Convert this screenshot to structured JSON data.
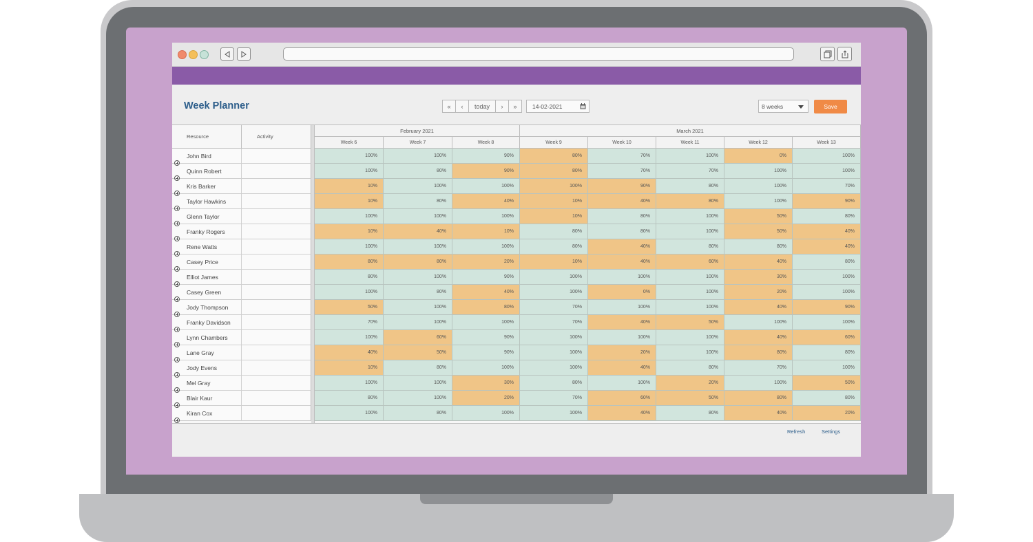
{
  "page": {
    "title": "Week Planner"
  },
  "toolbar": {
    "nav_first": "«",
    "nav_prev": "‹",
    "today": "today",
    "nav_next": "›",
    "nav_last": "»",
    "date": "14-02-2021",
    "range_select": "8 weeks",
    "save": "Save"
  },
  "grid": {
    "col_resource": "Resource",
    "col_activity": "Activity",
    "months": [
      "February 2021",
      "March 2021"
    ],
    "weeks": [
      "Week 6",
      "Week 7",
      "Week 8",
      "Week 9",
      "Week 10",
      "Week 11",
      "Week 12",
      "Week 13"
    ],
    "rows": [
      {
        "name": "John Bird",
        "values": [
          "100%",
          "100%",
          "90%",
          "80%",
          "70%",
          "100%",
          "0%",
          "100%"
        ]
      },
      {
        "name": "Quinn Robert",
        "values": [
          "100%",
          "80%",
          "90%",
          "80%",
          "70%",
          "70%",
          "100%",
          "100%"
        ]
      },
      {
        "name": "Kris Barker",
        "values": [
          "10%",
          "100%",
          "100%",
          "100%",
          "90%",
          "80%",
          "100%",
          "70%"
        ]
      },
      {
        "name": "Taylor Hawkins",
        "values": [
          "10%",
          "80%",
          "40%",
          "10%",
          "40%",
          "80%",
          "100%",
          "90%"
        ]
      },
      {
        "name": "Glenn Taylor",
        "values": [
          "100%",
          "100%",
          "100%",
          "10%",
          "80%",
          "100%",
          "50%",
          "80%"
        ]
      },
      {
        "name": "Franky Rogers",
        "values": [
          "10%",
          "40%",
          "10%",
          "80%",
          "80%",
          "100%",
          "50%",
          "40%"
        ]
      },
      {
        "name": "Rene Watts",
        "values": [
          "100%",
          "100%",
          "100%",
          "80%",
          "40%",
          "80%",
          "80%",
          "40%"
        ]
      },
      {
        "name": "Casey Price",
        "values": [
          "80%",
          "80%",
          "20%",
          "10%",
          "40%",
          "60%",
          "40%",
          "80%"
        ]
      },
      {
        "name": "Elliot James",
        "values": [
          "80%",
          "100%",
          "90%",
          "100%",
          "100%",
          "100%",
          "30%",
          "100%"
        ]
      },
      {
        "name": "Casey Green",
        "values": [
          "100%",
          "80%",
          "40%",
          "100%",
          "0%",
          "100%",
          "20%",
          "100%"
        ]
      },
      {
        "name": "Jody Thompson",
        "values": [
          "50%",
          "100%",
          "80%",
          "70%",
          "100%",
          "100%",
          "40%",
          "90%"
        ]
      },
      {
        "name": "Franky Davidson",
        "values": [
          "70%",
          "100%",
          "100%",
          "70%",
          "40%",
          "50%",
          "100%",
          "100%"
        ]
      },
      {
        "name": "Lynn Chambers",
        "values": [
          "100%",
          "60%",
          "90%",
          "100%",
          "100%",
          "100%",
          "40%",
          "60%"
        ]
      },
      {
        "name": "Lane Gray",
        "values": [
          "40%",
          "50%",
          "90%",
          "100%",
          "20%",
          "100%",
          "80%",
          "80%"
        ]
      },
      {
        "name": "Jody Evens",
        "values": [
          "10%",
          "80%",
          "100%",
          "100%",
          "40%",
          "80%",
          "70%",
          "100%"
        ]
      },
      {
        "name": "Mel Gray",
        "values": [
          "100%",
          "100%",
          "30%",
          "80%",
          "100%",
          "20%",
          "100%",
          "50%"
        ]
      },
      {
        "name": "Blair Kaur",
        "values": [
          "80%",
          "100%",
          "20%",
          "70%",
          "60%",
          "50%",
          "80%",
          "80%"
        ]
      },
      {
        "name": "Kiran Cox",
        "values": [
          "100%",
          "80%",
          "100%",
          "100%",
          "40%",
          "80%",
          "40%",
          "20%"
        ]
      }
    ],
    "cell_states": [
      [
        "g",
        "g",
        "g",
        "o",
        "g",
        "g",
        "o",
        "g"
      ],
      [
        "g",
        "g",
        "o",
        "o",
        "g",
        "g",
        "g",
        "g"
      ],
      [
        "o",
        "g",
        "g",
        "o",
        "o",
        "g",
        "g",
        "g"
      ],
      [
        "o",
        "g",
        "o",
        "o",
        "o",
        "o",
        "g",
        "o"
      ],
      [
        "g",
        "g",
        "g",
        "o",
        "g",
        "g",
        "o",
        "g"
      ],
      [
        "o",
        "o",
        "o",
        "g",
        "g",
        "g",
        "o",
        "o"
      ],
      [
        "g",
        "g",
        "g",
        "g",
        "o",
        "g",
        "g",
        "o"
      ],
      [
        "o",
        "o",
        "o",
        "o",
        "o",
        "o",
        "o",
        "g"
      ],
      [
        "g",
        "g",
        "g",
        "g",
        "g",
        "g",
        "o",
        "g"
      ],
      [
        "g",
        "g",
        "o",
        "g",
        "o",
        "g",
        "o",
        "g"
      ],
      [
        "o",
        "g",
        "o",
        "g",
        "g",
        "g",
        "o",
        "o"
      ],
      [
        "g",
        "g",
        "g",
        "g",
        "o",
        "o",
        "g",
        "g"
      ],
      [
        "g",
        "o",
        "g",
        "g",
        "g",
        "g",
        "o",
        "o"
      ],
      [
        "o",
        "o",
        "g",
        "g",
        "o",
        "g",
        "o",
        "g"
      ],
      [
        "o",
        "g",
        "g",
        "g",
        "o",
        "g",
        "g",
        "g"
      ],
      [
        "g",
        "g",
        "o",
        "g",
        "g",
        "o",
        "g",
        "o"
      ],
      [
        "g",
        "g",
        "o",
        "g",
        "o",
        "o",
        "o",
        "g"
      ],
      [
        "g",
        "g",
        "g",
        "g",
        "o",
        "g",
        "o",
        "o"
      ]
    ]
  },
  "footer": {
    "refresh": "Refresh",
    "settings": "Settings"
  },
  "colors": {
    "accent_bar": "#8a5ba7",
    "title": "#2c5d8a",
    "save_button": "#f08a46",
    "cell_ok": "#d1e5dd",
    "cell_warn": "#f0c587"
  }
}
